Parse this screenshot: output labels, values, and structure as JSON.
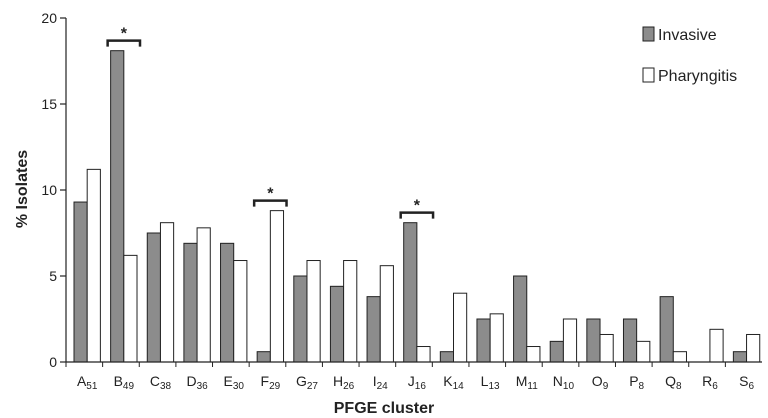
{
  "chart_data": {
    "type": "bar",
    "categories": [
      {
        "letter": "A",
        "sub": "51"
      },
      {
        "letter": "B",
        "sub": "49"
      },
      {
        "letter": "C",
        "sub": "38"
      },
      {
        "letter": "D",
        "sub": "36"
      },
      {
        "letter": "E",
        "sub": "30"
      },
      {
        "letter": "F",
        "sub": "29"
      },
      {
        "letter": "G",
        "sub": "27"
      },
      {
        "letter": "H",
        "sub": "26"
      },
      {
        "letter": "I",
        "sub": "24"
      },
      {
        "letter": "J",
        "sub": "16"
      },
      {
        "letter": "K",
        "sub": "14"
      },
      {
        "letter": "L",
        "sub": "13"
      },
      {
        "letter": "M",
        "sub": "11"
      },
      {
        "letter": "N",
        "sub": "10"
      },
      {
        "letter": "O",
        "sub": "9"
      },
      {
        "letter": "P",
        "sub": "8"
      },
      {
        "letter": "Q",
        "sub": "8"
      },
      {
        "letter": "R",
        "sub": "6"
      },
      {
        "letter": "S",
        "sub": "6"
      }
    ],
    "series": [
      {
        "name": "Invasive",
        "color": "#8c8c8c",
        "values": [
          9.3,
          18.1,
          7.5,
          6.9,
          6.9,
          0.6,
          5.0,
          4.4,
          3.8,
          8.1,
          0.6,
          2.5,
          5.0,
          1.2,
          2.5,
          2.5,
          3.8,
          0,
          0.6
        ]
      },
      {
        "name": "Pharyngitis",
        "color": "#ffffff",
        "values": [
          11.2,
          6.2,
          8.1,
          7.8,
          5.9,
          8.8,
          5.9,
          5.9,
          5.6,
          0.9,
          4.0,
          2.8,
          0.9,
          2.5,
          1.6,
          1.2,
          0.6,
          1.9,
          1.6
        ]
      }
    ],
    "xlabel": "PFGE cluster",
    "ylabel": "% Isolates",
    "ylim": [
      0,
      20
    ],
    "yticks": [
      0,
      5,
      10,
      15,
      20
    ],
    "grid": false,
    "legend": "top-right",
    "significance": [
      {
        "category_index": 1,
        "label": "*"
      },
      {
        "category_index": 5,
        "label": "*"
      },
      {
        "category_index": 9,
        "label": "*"
      }
    ]
  }
}
